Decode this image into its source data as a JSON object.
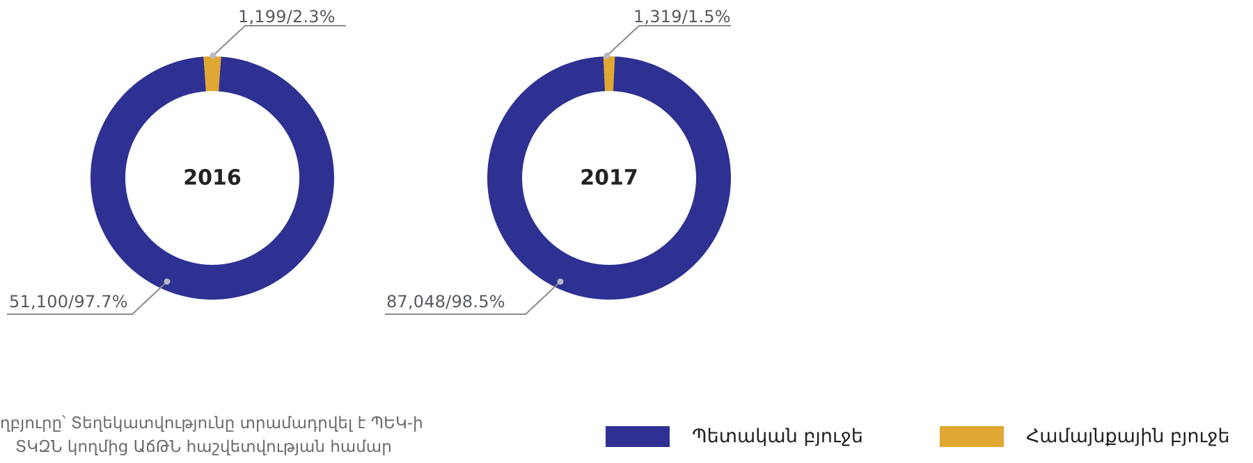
{
  "colors": {
    "state_budget": "#2e3192",
    "community_budget": "#e0a732",
    "leader_line": "#8a8a8a"
  },
  "chart_data": [
    {
      "type": "pie",
      "variant": "donut",
      "center_label": "2016",
      "categories": [
        "Պետական բյուջե",
        "Համայնքային բյուջե"
      ],
      "values": [
        51100,
        1199
      ],
      "percents": [
        97.7,
        2.3
      ],
      "data_labels": [
        "51,100/97.7%",
        "1,199/2.3%"
      ]
    },
    {
      "type": "pie",
      "variant": "donut",
      "center_label": "2017",
      "categories": [
        "Պետական բյուջե",
        "Համայնքային բյուջե"
      ],
      "values": [
        87048,
        1319
      ],
      "percents": [
        98.5,
        1.5
      ],
      "data_labels": [
        "87,048/98.5%",
        "1,319/1.5%"
      ]
    }
  ],
  "legend": {
    "position": "bottom-right",
    "items": [
      {
        "label": "Պետական բյուջե",
        "color": "#2e3192"
      },
      {
        "label": "Համայնքային բյուջե",
        "color": "#e0a732"
      }
    ]
  },
  "source_note": {
    "line1": "ղբյուրը՝ Տեղեկատվությունը տրամադրվել է ՊԵԿ-ի",
    "line2": "ՏԿԶՆ կողմից ԱճԹՆ հաշվետվության համար"
  }
}
